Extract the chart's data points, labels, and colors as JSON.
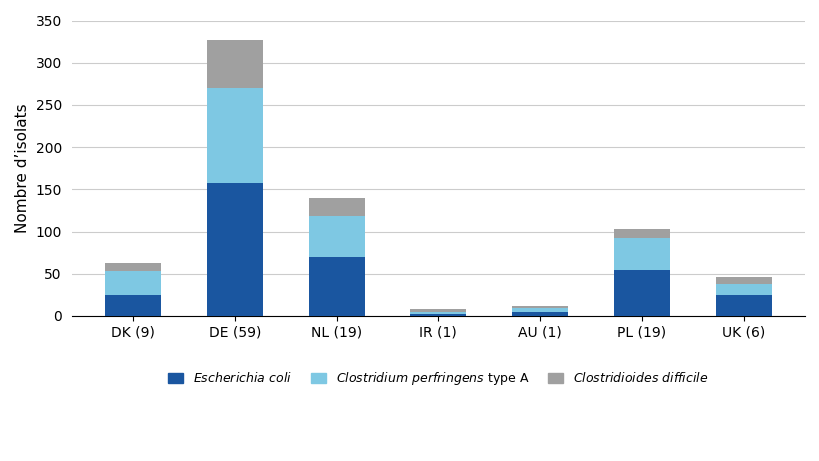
{
  "categories": [
    "DK (9)",
    "DE (59)",
    "NL (19)",
    "IR (1)",
    "AU (1)",
    "PL (19)",
    "UK (6)"
  ],
  "ecoli": [
    25,
    158,
    70,
    2,
    5,
    55,
    25
  ],
  "clostridium": [
    28,
    112,
    48,
    3,
    5,
    37,
    13
  ],
  "clostridioides": [
    10,
    57,
    22,
    3,
    2,
    11,
    8
  ],
  "ecoli_color": "#1a56a0",
  "clostridium_color": "#7ec8e3",
  "clostridioides_color": "#a0a0a0",
  "ylabel": "Nombre d’isolats",
  "ylim": [
    0,
    350
  ],
  "yticks": [
    0,
    50,
    100,
    150,
    200,
    250,
    300,
    350
  ],
  "legend_ecoli": "Escherichia coli",
  "legend_clostridium": "Clostridium perfringens type A",
  "legend_clostridioides": "Clostridioides difficile",
  "bg_color": "#ffffff",
  "grid_color": "#cccccc",
  "bar_width": 0.55
}
